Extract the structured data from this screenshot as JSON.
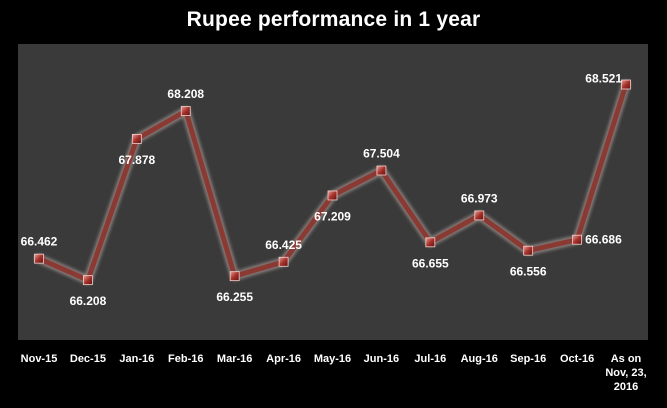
{
  "chart_data": {
    "type": "line",
    "title": "Rupee performance in 1 year",
    "xlabel": "",
    "ylabel": "",
    "categories": [
      "Nov-15",
      "Dec-15",
      "Jan-16",
      "Feb-16",
      "Mar-16",
      "Apr-16",
      "May-16",
      "Jun-16",
      "Jul-16",
      "Aug-16",
      "Sep-16",
      "Oct-16",
      "As on Nov, 23, 2016"
    ],
    "series": [
      {
        "values": [
          66.462,
          66.208,
          67.878,
          68.208,
          66.255,
          66.425,
          67.209,
          67.504,
          66.655,
          66.973,
          66.556,
          66.686,
          68.521
        ],
        "labels": [
          "66.462",
          "66.208",
          "67.878",
          "68.208",
          "66.255",
          "66.425",
          "67.209",
          "67.504",
          "66.655",
          "66.973",
          "66.556",
          "66.686",
          "68.521"
        ]
      }
    ],
    "ylim": [
      65.5,
      69.0
    ],
    "grid": false,
    "legend": "none",
    "colors": {
      "page_background": "#000000",
      "plot_background": "#3a3a3a",
      "line": "#8b3a33",
      "line_highlight": "#c9b7b2",
      "marker": "#9b2b27",
      "text": "#ffffff"
    }
  }
}
